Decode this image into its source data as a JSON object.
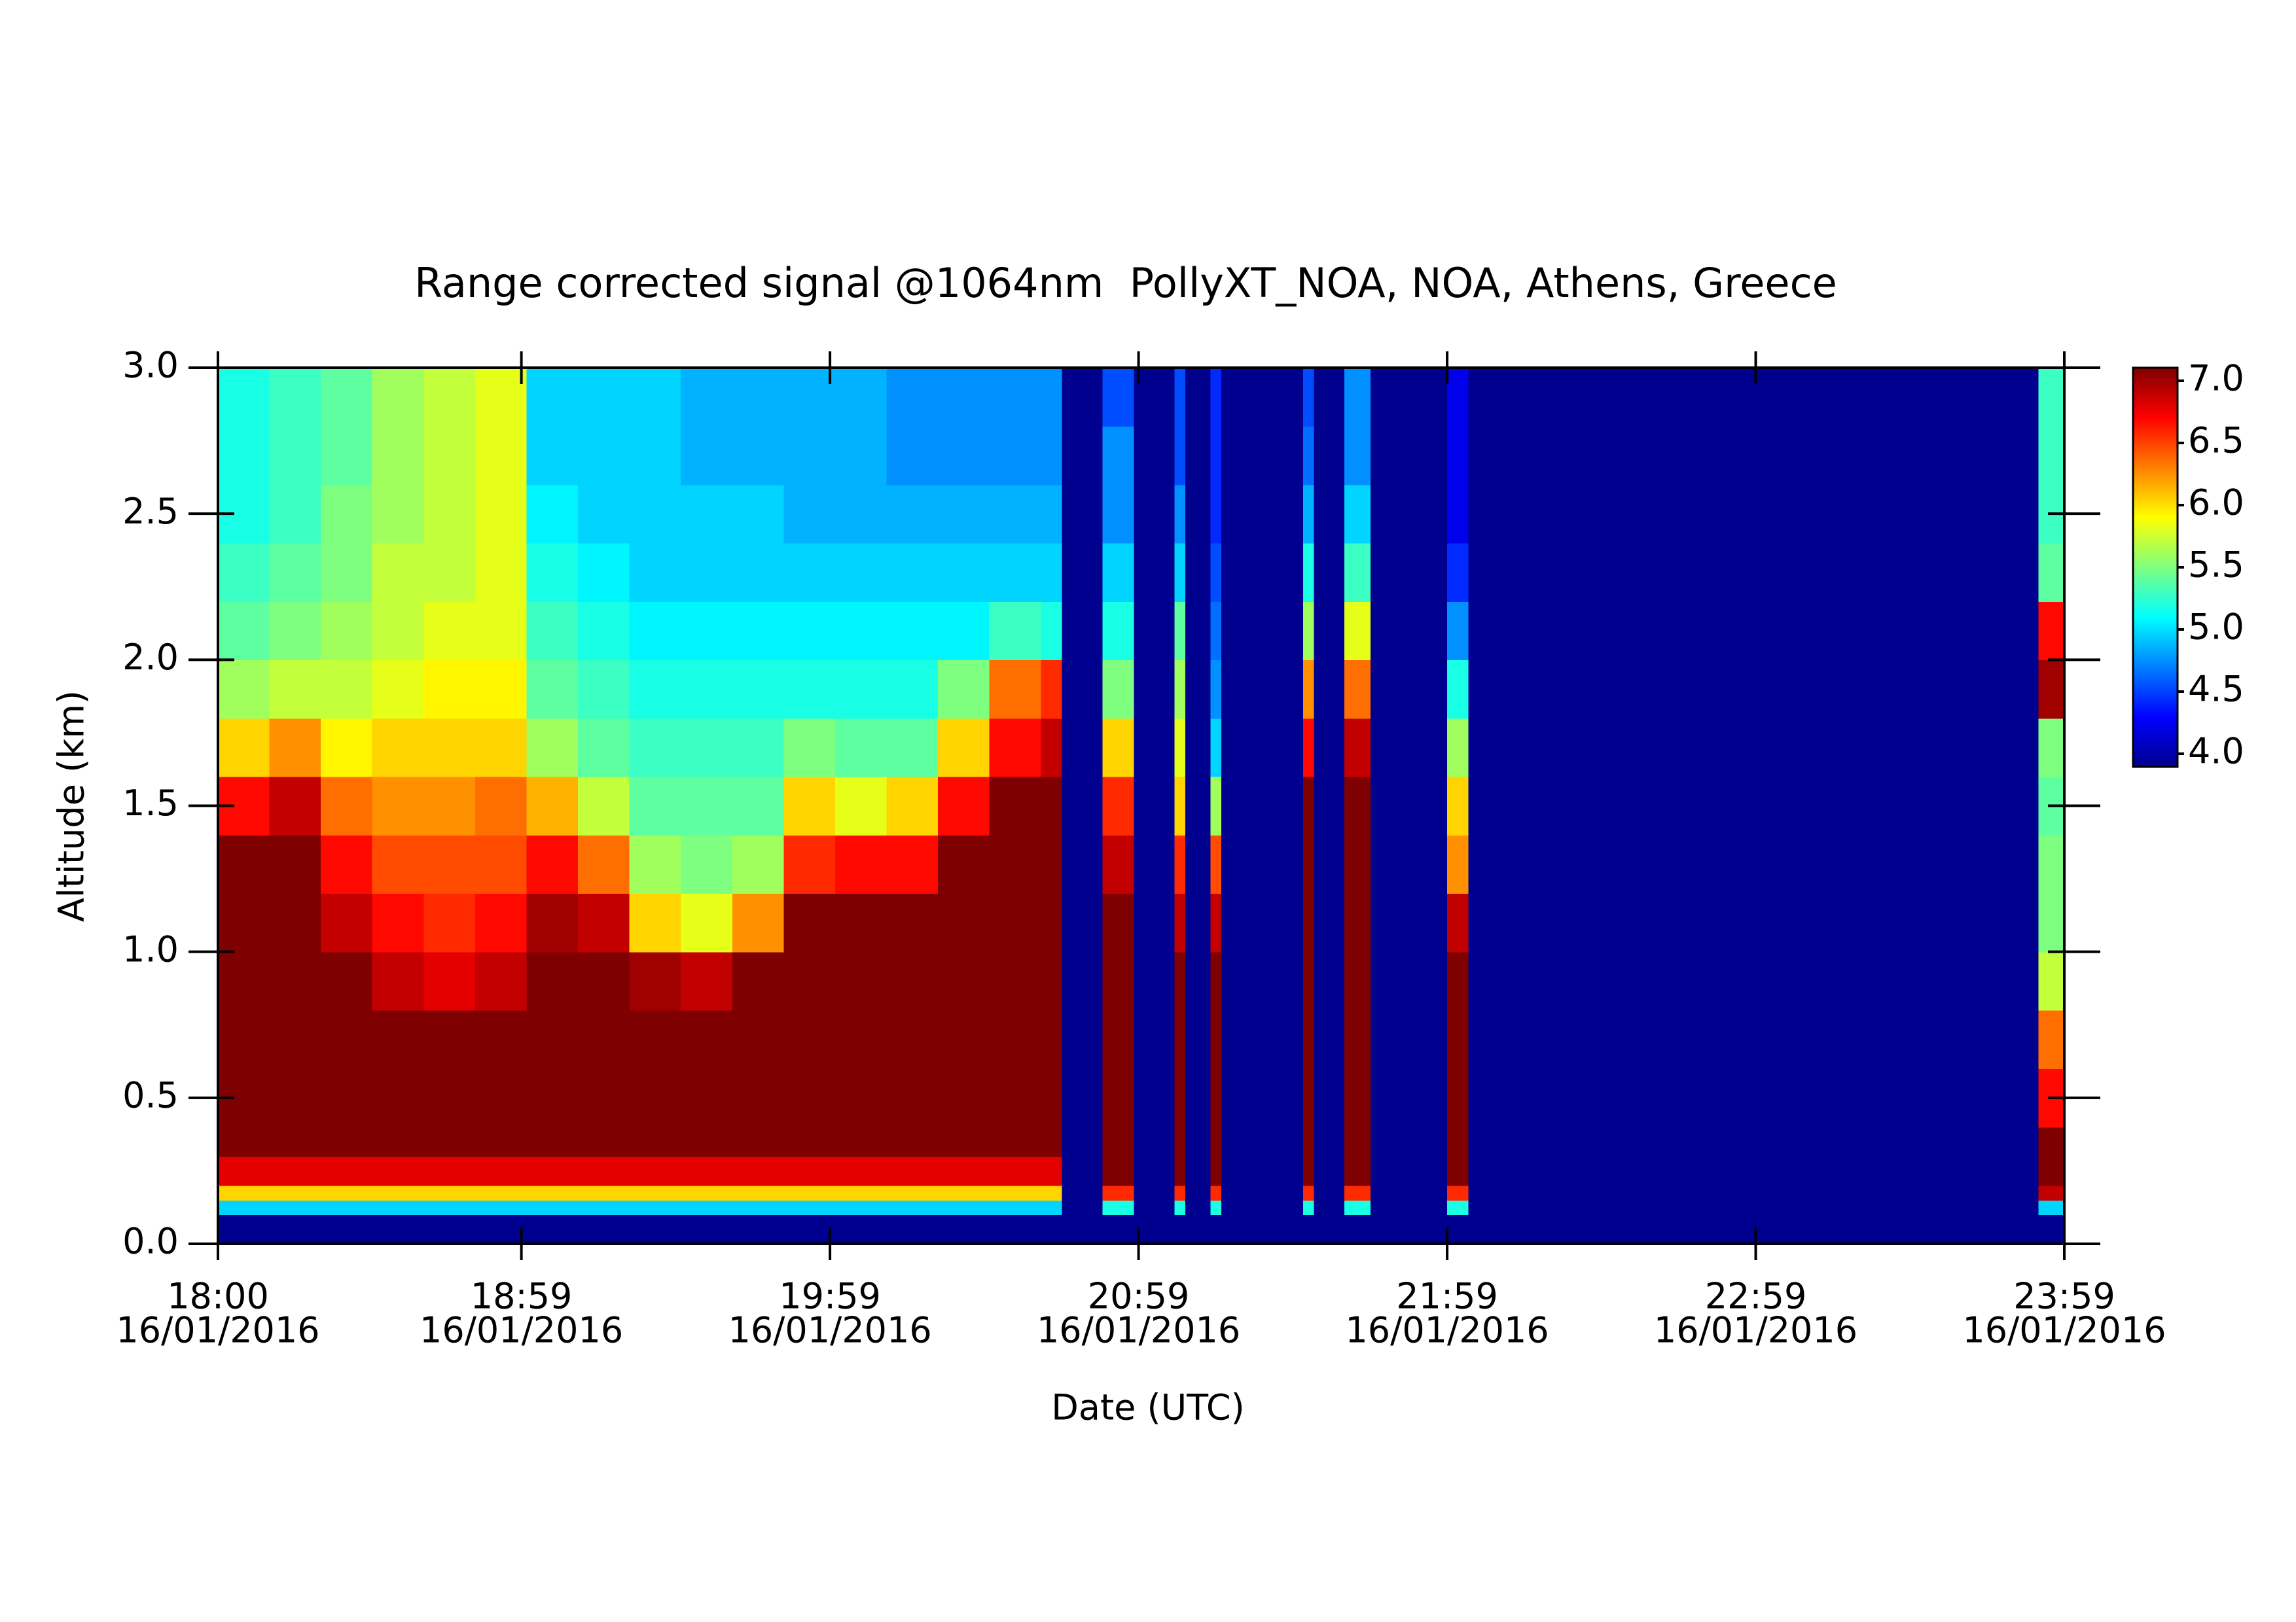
{
  "chart_data": {
    "type": "heatmap",
    "title": "Range corrected signal @1064nm  PollyXT_NOA, NOA, Athens, Greece",
    "x_label": "Date (UTC)",
    "y_label": "Altitude (km)",
    "xlim": [
      "18:00",
      "23:59"
    ],
    "xticks": [
      {
        "value": "18:00",
        "label": [
          "18:00",
          "16/01/2016"
        ]
      },
      {
        "value": "18:59",
        "label": [
          "18:59",
          "16/01/2016"
        ]
      },
      {
        "value": "19:59",
        "label": [
          "19:59",
          "16/01/2016"
        ]
      },
      {
        "value": "20:59",
        "label": [
          "20:59",
          "16/01/2016"
        ]
      },
      {
        "value": "21:59",
        "label": [
          "21:59",
          "16/01/2016"
        ]
      },
      {
        "value": "22:59",
        "label": [
          "22:59",
          "16/01/2016"
        ]
      },
      {
        "value": "23:59",
        "label": [
          "23:59",
          "16/01/2016"
        ]
      }
    ],
    "ylim": [
      0,
      3
    ],
    "yticks": [
      {
        "value": 0,
        "label": "0.0"
      },
      0.5,
      {
        "value": 1,
        "label": "1.0"
      },
      1.5,
      {
        "value": 2,
        "label": "2.0"
      },
      2.5,
      {
        "value": 3,
        "label": "3.0"
      }
    ],
    "zlim": [
      4,
      7
    ],
    "zticks": [
      {
        "value": 4,
        "label": "4.0"
      },
      4.5,
      {
        "value": 5,
        "label": "5.0"
      },
      5.5,
      {
        "value": 6,
        "label": "6.0"
      },
      6.5,
      {
        "value": 7,
        "label": "7.0"
      }
    ],
    "colormap": [
      "#00008f",
      "#0000ff",
      "#007fff",
      "#00ffff",
      "#7fff7f",
      "#ffff00",
      "#ff7f00",
      "#ff0000",
      "#7f0000"
    ],
    "x": [
      "18:00",
      "18:10",
      "18:20",
      "18:30",
      "18:40",
      "18:50",
      "19:00",
      "19:10",
      "19:20",
      "19:30",
      "19:40",
      "19:50",
      "20:00",
      "20:10",
      "20:20",
      "20:30",
      "20:40",
      "20:44",
      "20:52",
      "20:58",
      "21:06",
      "21:08",
      "21:13",
      "21:15",
      "21:31",
      "21:33",
      "21:39",
      "21:44",
      "21:59",
      "22:03",
      "23:54",
      "23:59"
    ],
    "y": [
      0,
      0.1,
      0.15,
      0.2,
      0.3,
      0.4,
      0.6,
      0.8,
      1.0,
      1.2,
      1.4,
      1.6,
      1.8,
      2.0,
      2.2,
      2.4,
      2.6,
      2.8,
      3.0
    ],
    "values": [
      [
        4.0,
        5.0,
        6.0,
        6.7,
        7.0,
        7.0,
        7.0,
        7.0,
        7.0,
        7.0,
        6.6,
        6.0,
        5.6,
        5.4,
        5.3,
        5.2,
        5.2,
        5.2
      ],
      [
        4.0,
        5.0,
        6.0,
        6.7,
        7.0,
        7.0,
        7.0,
        7.0,
        7.0,
        7.0,
        6.8,
        6.2,
        5.7,
        5.5,
        5.4,
        5.3,
        5.3,
        5.3
      ],
      [
        4.0,
        5.0,
        6.0,
        6.7,
        7.0,
        7.0,
        7.0,
        7.0,
        6.8,
        6.6,
        6.3,
        5.9,
        5.7,
        5.6,
        5.5,
        5.5,
        5.4,
        5.4
      ],
      [
        4.0,
        5.0,
        6.0,
        6.7,
        7.0,
        7.0,
        7.0,
        6.8,
        6.6,
        6.4,
        6.2,
        6.0,
        5.8,
        5.7,
        5.7,
        5.6,
        5.6,
        5.6
      ],
      [
        4.0,
        5.0,
        6.0,
        6.7,
        7.0,
        7.0,
        7.0,
        6.7,
        6.5,
        6.4,
        6.2,
        6.0,
        5.9,
        5.8,
        5.7,
        5.7,
        5.7,
        5.7
      ],
      [
        4.0,
        5.0,
        6.0,
        6.7,
        7.0,
        7.0,
        7.0,
        6.8,
        6.6,
        6.4,
        6.3,
        6.0,
        5.9,
        5.8,
        5.8,
        5.8,
        5.8,
        5.8
      ],
      [
        4.0,
        5.0,
        6.0,
        6.7,
        7.0,
        7.0,
        7.0,
        7.0,
        6.9,
        6.6,
        6.1,
        5.6,
        5.4,
        5.3,
        5.2,
        5.1,
        5.0,
        5.0
      ],
      [
        4.0,
        5.0,
        6.0,
        6.7,
        7.0,
        7.0,
        7.0,
        7.0,
        6.8,
        6.3,
        5.7,
        5.4,
        5.3,
        5.2,
        5.1,
        5.0,
        5.0,
        5.0
      ],
      [
        4.0,
        5.0,
        6.0,
        6.7,
        7.0,
        7.0,
        7.0,
        6.9,
        6.0,
        5.6,
        5.4,
        5.3,
        5.2,
        5.1,
        5.0,
        5.0,
        5.0,
        5.0
      ],
      [
        4.0,
        5.0,
        6.0,
        6.7,
        7.0,
        7.0,
        7.0,
        6.8,
        5.8,
        5.5,
        5.4,
        5.3,
        5.2,
        5.1,
        5.0,
        5.0,
        4.9,
        4.9
      ],
      [
        4.0,
        5.0,
        6.0,
        6.7,
        7.0,
        7.0,
        7.0,
        7.0,
        6.2,
        5.6,
        5.4,
        5.3,
        5.2,
        5.1,
        5.0,
        5.0,
        4.9,
        4.9
      ],
      [
        4.0,
        5.0,
        6.0,
        6.7,
        7.0,
        7.0,
        7.0,
        7.0,
        7.0,
        6.5,
        6.0,
        5.5,
        5.2,
        5.1,
        5.0,
        4.9,
        4.9,
        4.9
      ],
      [
        4.0,
        5.0,
        6.0,
        6.7,
        7.0,
        7.0,
        7.0,
        7.0,
        7.0,
        6.6,
        5.8,
        5.4,
        5.2,
        5.1,
        5.0,
        4.9,
        4.9,
        4.9
      ],
      [
        4.0,
        5.0,
        6.0,
        6.7,
        7.0,
        7.0,
        7.0,
        7.0,
        7.0,
        6.6,
        6.0,
        5.4,
        5.2,
        5.1,
        5.0,
        4.9,
        4.8,
        4.8
      ],
      [
        4.0,
        5.0,
        6.0,
        6.7,
        7.0,
        7.0,
        7.0,
        7.0,
        7.0,
        7.0,
        6.6,
        6.0,
        5.5,
        5.1,
        5.0,
        4.9,
        4.8,
        4.8
      ],
      [
        4.0,
        5.0,
        6.0,
        6.7,
        7.0,
        7.0,
        7.0,
        7.0,
        7.0,
        7.0,
        7.0,
        6.6,
        6.3,
        5.3,
        5.0,
        4.9,
        4.8,
        4.8
      ],
      [
        4.0,
        5.0,
        6.0,
        6.7,
        7.0,
        7.0,
        7.0,
        7.0,
        7.0,
        7.0,
        7.0,
        6.8,
        6.5,
        5.2,
        5.0,
        4.9,
        4.8,
        4.8
      ],
      null,
      [
        4.0,
        5.2,
        6.5,
        7.0,
        7.0,
        7.0,
        7.0,
        7.0,
        7.0,
        6.8,
        6.5,
        6.0,
        5.5,
        5.2,
        5.0,
        4.8,
        4.8,
        4.6
      ],
      null,
      [
        4.0,
        5.2,
        6.5,
        7.0,
        7.0,
        7.0,
        7.0,
        7.0,
        6.8,
        6.5,
        6.0,
        5.8,
        5.6,
        5.4,
        5.0,
        4.8,
        4.6,
        4.6
      ],
      null,
      [
        4.0,
        5.2,
        6.5,
        7.0,
        7.0,
        7.0,
        7.0,
        7.0,
        6.8,
        6.4,
        5.6,
        5.0,
        4.8,
        4.7,
        4.6,
        4.5,
        4.5,
        4.5
      ],
      null,
      [
        4.0,
        5.2,
        6.5,
        7.0,
        7.0,
        7.0,
        7.0,
        7.0,
        7.0,
        7.0,
        7.0,
        6.6,
        6.2,
        5.6,
        5.2,
        4.9,
        4.7,
        4.6
      ],
      null,
      [
        4.0,
        5.2,
        6.5,
        7.0,
        7.0,
        7.0,
        7.0,
        7.0,
        7.0,
        7.0,
        7.0,
        6.8,
        6.3,
        5.8,
        5.3,
        5.0,
        4.8,
        4.8
      ],
      null,
      [
        4.0,
        5.2,
        6.5,
        7.0,
        7.0,
        7.0,
        7.0,
        7.0,
        6.8,
        6.2,
        6.0,
        5.6,
        5.2,
        4.8,
        4.5,
        4.3,
        4.3,
        4.3
      ],
      null,
      [
        4.0,
        5.0,
        6.8,
        7.0,
        7.0,
        6.6,
        6.3,
        5.7,
        5.5,
        5.5,
        5.4,
        5.5,
        6.9,
        6.6,
        5.4,
        5.3,
        5.3,
        5.3
      ]
    ]
  }
}
